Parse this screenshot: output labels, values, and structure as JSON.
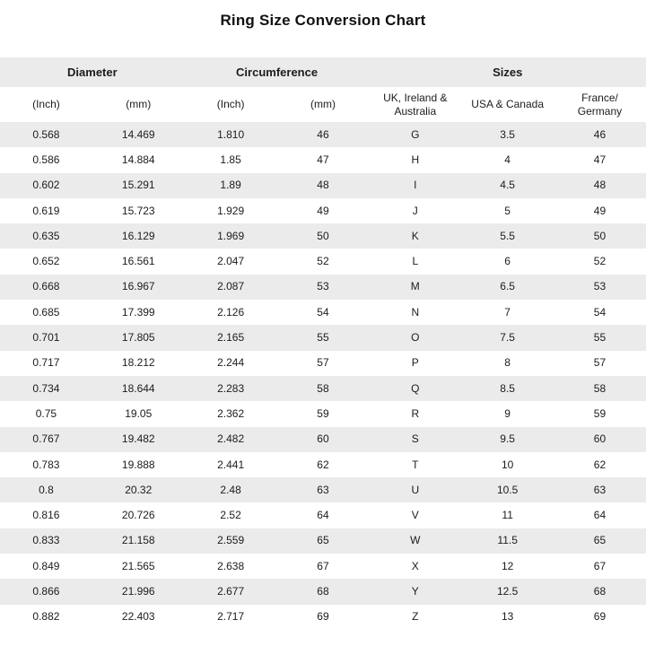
{
  "title": "Ring Size Conversion Chart",
  "colors": {
    "stripe": "#ebebeb",
    "background": "#ffffff",
    "text": "#1c1c1c"
  },
  "chart_data": {
    "type": "table",
    "title": "Ring Size Conversion Chart",
    "group_headers": [
      {
        "label": "Diameter",
        "span": 2
      },
      {
        "label": "Circumference",
        "span": 2
      },
      {
        "label": "Sizes",
        "span": 3
      }
    ],
    "columns": [
      "(Inch)",
      "(mm)",
      "(Inch)",
      "(mm)",
      "UK, Ireland & Australia",
      "USA & Canada",
      "France/ Germany"
    ],
    "rows": [
      [
        "0.568",
        "14.469",
        "1.810",
        "46",
        "G",
        "3.5",
        "46"
      ],
      [
        "0.586",
        "14.884",
        "1.85",
        "47",
        "H",
        "4",
        "47"
      ],
      [
        "0.602",
        "15.291",
        "1.89",
        "48",
        "I",
        "4.5",
        "48"
      ],
      [
        "0.619",
        "15.723",
        "1.929",
        "49",
        "J",
        "5",
        "49"
      ],
      [
        "0.635",
        "16.129",
        "1.969",
        "50",
        "K",
        "5.5",
        "50"
      ],
      [
        "0.652",
        "16.561",
        "2.047",
        "52",
        "L",
        "6",
        "52"
      ],
      [
        "0.668",
        "16.967",
        "2.087",
        "53",
        "M",
        "6.5",
        "53"
      ],
      [
        "0.685",
        "17.399",
        "2.126",
        "54",
        "N",
        "7",
        "54"
      ],
      [
        "0.701",
        "17.805",
        "2.165",
        "55",
        "O",
        "7.5",
        "55"
      ],
      [
        "0.717",
        "18.212",
        "2.244",
        "57",
        "P",
        "8",
        "57"
      ],
      [
        "0.734",
        "18.644",
        "2.283",
        "58",
        "Q",
        "8.5",
        "58"
      ],
      [
        "0.75",
        "19.05",
        "2.362",
        "59",
        "R",
        "9",
        "59"
      ],
      [
        "0.767",
        "19.482",
        "2.482",
        "60",
        "S",
        "9.5",
        "60"
      ],
      [
        "0.783",
        "19.888",
        "2.441",
        "62",
        "T",
        "10",
        "62"
      ],
      [
        "0.8",
        "20.32",
        "2.48",
        "63",
        "U",
        "10.5",
        "63"
      ],
      [
        "0.816",
        "20.726",
        "2.52",
        "64",
        "V",
        "11",
        "64"
      ],
      [
        "0.833",
        "21.158",
        "2.559",
        "65",
        "W",
        "11.5",
        "65"
      ],
      [
        "0.849",
        "21.565",
        "2.638",
        "67",
        "X",
        "12",
        "67"
      ],
      [
        "0.866",
        "21.996",
        "2.677",
        "68",
        "Y",
        "12.5",
        "68"
      ],
      [
        "0.882",
        "22.403",
        "2.717",
        "69",
        "Z",
        "13",
        "69"
      ]
    ]
  }
}
